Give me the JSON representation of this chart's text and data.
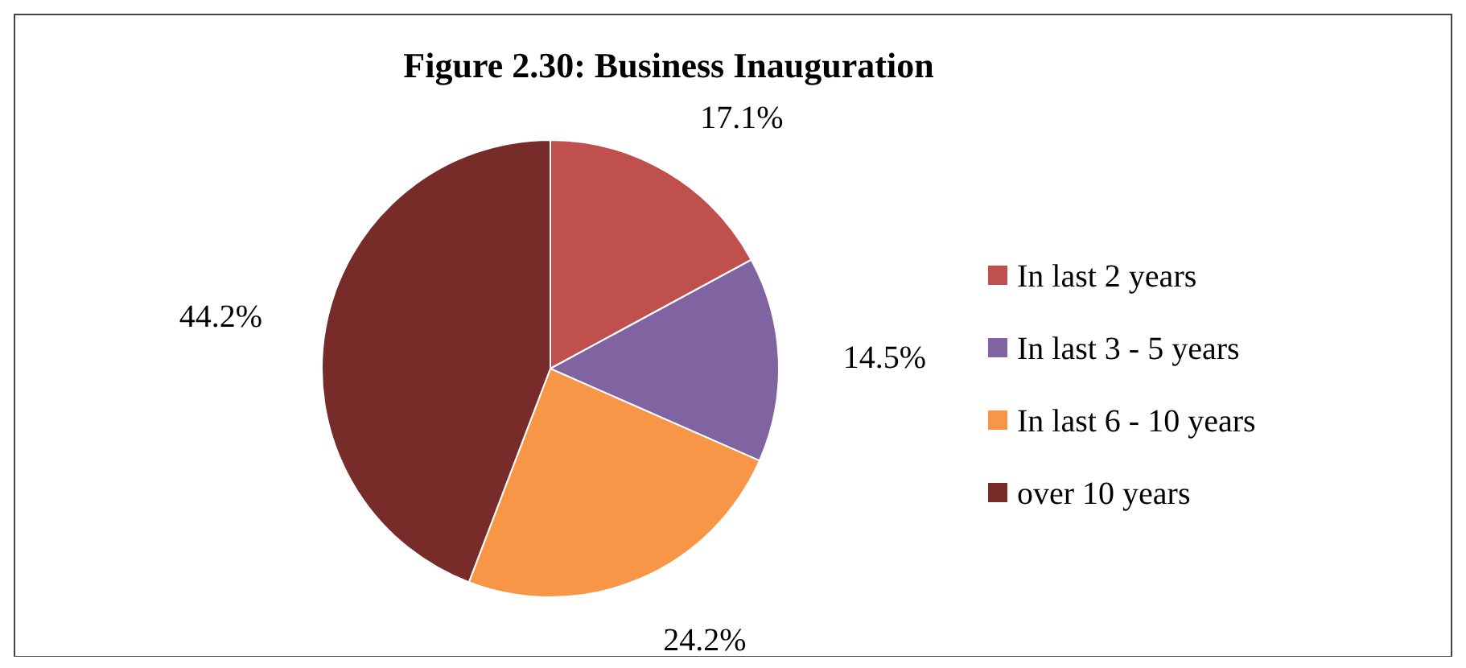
{
  "chart_data": {
    "type": "pie",
    "title": "Figure 2.30: Business Inauguration",
    "categories": [
      "In last 2 years",
      "In last 3 - 5 years",
      "In last 6 - 10 years",
      "over 10 years"
    ],
    "values": [
      17.1,
      14.5,
      24.2,
      44.2
    ],
    "colors": [
      "#c0504d",
      "#8064a2",
      "#f79646",
      "#772c2a"
    ],
    "value_labels": [
      "17.1%",
      "14.5%",
      "24.2%",
      "44.2%"
    ],
    "legend": "right"
  }
}
